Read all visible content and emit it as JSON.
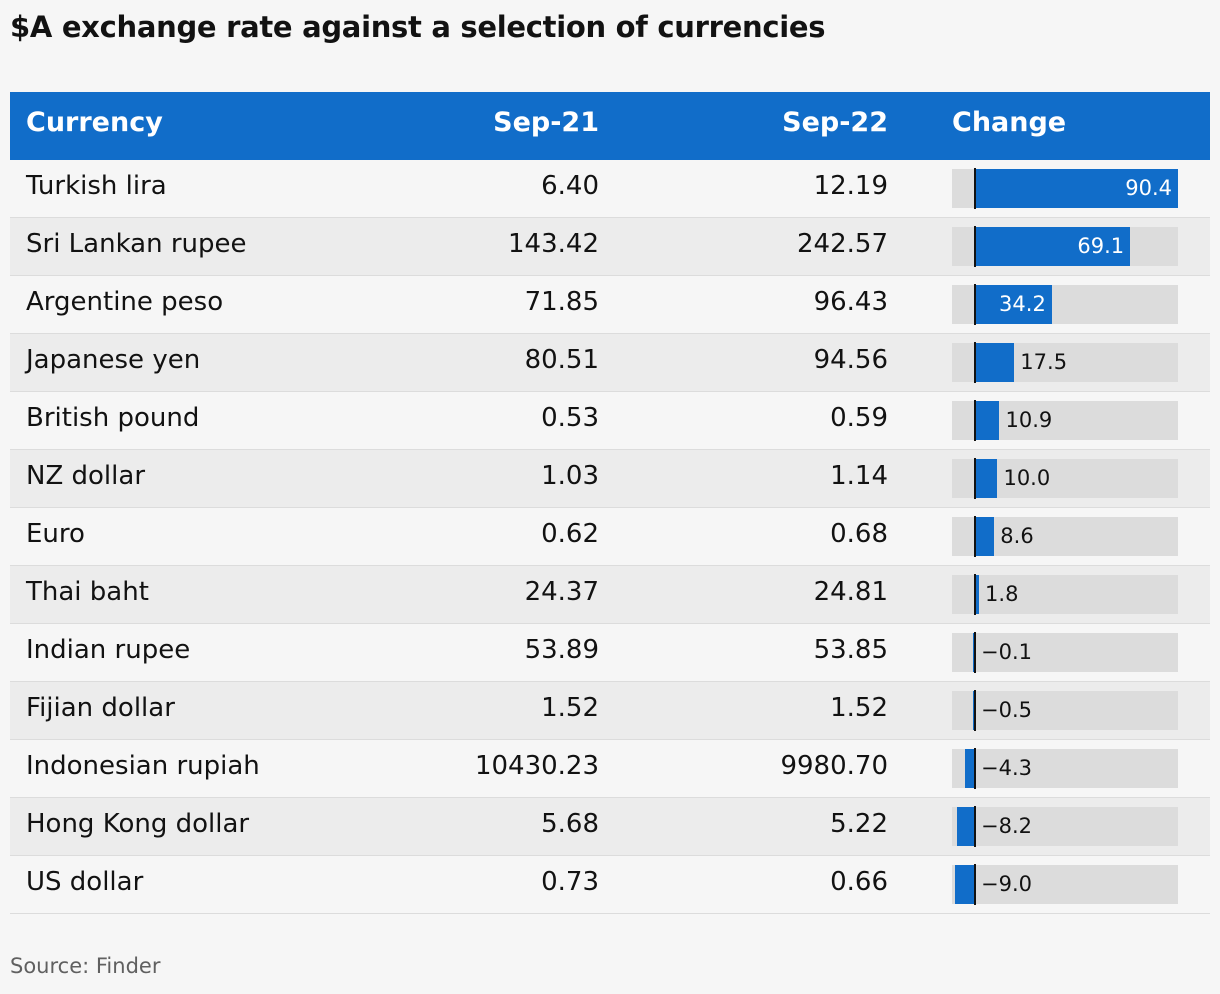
{
  "title": "$A exchange rate against a selection of currencies",
  "header": {
    "currency": "Currency",
    "sep21": "Sep-21",
    "sep22": "Sep-22",
    "change": "Change"
  },
  "source": "Source: Finder",
  "colors": {
    "header_bg": "#116dc9",
    "bar": "#116dc9",
    "bar_bg": "#dcdcdc"
  },
  "chart_data": {
    "type": "table",
    "columns": [
      "Currency",
      "Sep-21",
      "Sep-22",
      "Change"
    ],
    "rows": [
      {
        "currency": "Turkish lira",
        "sep21": "6.40",
        "sep22": "12.19",
        "change": 90.4,
        "change_label": "90.4"
      },
      {
        "currency": "Sri Lankan rupee",
        "sep21": "143.42",
        "sep22": "242.57",
        "change": 69.1,
        "change_label": "69.1"
      },
      {
        "currency": "Argentine peso",
        "sep21": "71.85",
        "sep22": "96.43",
        "change": 34.2,
        "change_label": "34.2"
      },
      {
        "currency": "Japanese yen",
        "sep21": "80.51",
        "sep22": "94.56",
        "change": 17.5,
        "change_label": "17.5"
      },
      {
        "currency": "British pound",
        "sep21": "0.53",
        "sep22": "0.59",
        "change": 10.9,
        "change_label": "10.9"
      },
      {
        "currency": "NZ dollar",
        "sep21": "1.03",
        "sep22": "1.14",
        "change": 10.0,
        "change_label": "10.0"
      },
      {
        "currency": "Euro",
        "sep21": "0.62",
        "sep22": "0.68",
        "change": 8.6,
        "change_label": "8.6"
      },
      {
        "currency": "Thai baht",
        "sep21": "24.37",
        "sep22": "24.81",
        "change": 1.8,
        "change_label": "1.8"
      },
      {
        "currency": "Indian rupee",
        "sep21": "53.89",
        "sep22": "53.85",
        "change": -0.1,
        "change_label": "−0.1"
      },
      {
        "currency": "Fijian dollar",
        "sep21": "1.52",
        "sep22": "1.52",
        "change": -0.5,
        "change_label": "−0.5"
      },
      {
        "currency": "Indonesian rupiah",
        "sep21": "10430.23",
        "sep22": "9980.70",
        "change": -4.3,
        "change_label": "−4.3"
      },
      {
        "currency": "Hong Kong dollar",
        "sep21": "5.68",
        "sep22": "5.22",
        "change": -8.2,
        "change_label": "−8.2"
      },
      {
        "currency": "US dollar",
        "sep21": "0.73",
        "sep22": "0.66",
        "change": -9.0,
        "change_label": "−9.0"
      }
    ],
    "change_range": [
      -9.0,
      90.4
    ]
  }
}
